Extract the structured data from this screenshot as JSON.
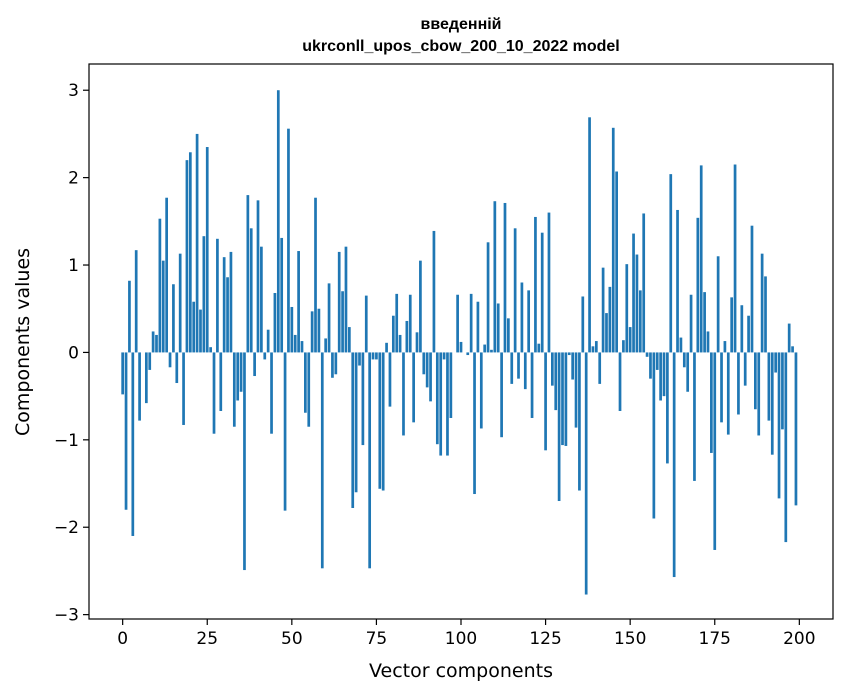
{
  "chart_data": {
    "type": "bar",
    "title_line1": "введеннiй",
    "title_line2": "ukrconll_upos_cbow_200_10_2022 model",
    "xlabel": "Vector components",
    "ylabel": "Components values",
    "xlim": [
      -9.95,
      209.95
    ],
    "ylim": [
      -3.05,
      3.3
    ],
    "xticks": [
      0,
      25,
      50,
      75,
      100,
      125,
      150,
      175,
      200
    ],
    "xtick_labels": [
      "0",
      "25",
      "50",
      "75",
      "100",
      "125",
      "150",
      "175",
      "200"
    ],
    "yticks": [
      3,
      2,
      1,
      0,
      -1,
      -2,
      -3
    ],
    "ytick_labels": [
      "3",
      "2",
      "1",
      "0",
      "−1",
      "−2",
      "−3"
    ],
    "bar_color": "#1f77b4",
    "grid": false,
    "legend": "none",
    "x": [
      0,
      1,
      2,
      3,
      4,
      5,
      6,
      7,
      8,
      9,
      10,
      11,
      12,
      13,
      14,
      15,
      16,
      17,
      18,
      19,
      20,
      21,
      22,
      23,
      24,
      25,
      26,
      27,
      28,
      29,
      30,
      31,
      32,
      33,
      34,
      35,
      36,
      37,
      38,
      39,
      40,
      41,
      42,
      43,
      44,
      45,
      46,
      47,
      48,
      49,
      50,
      51,
      52,
      53,
      54,
      55,
      56,
      57,
      58,
      59,
      60,
      61,
      62,
      63,
      64,
      65,
      66,
      67,
      68,
      69,
      70,
      71,
      72,
      73,
      74,
      75,
      76,
      77,
      78,
      79,
      80,
      81,
      82,
      83,
      84,
      85,
      86,
      87,
      88,
      89,
      90,
      91,
      92,
      93,
      94,
      95,
      96,
      97,
      98,
      99,
      100,
      101,
      102,
      103,
      104,
      105,
      106,
      107,
      108,
      109,
      110,
      111,
      112,
      113,
      114,
      115,
      116,
      117,
      118,
      119,
      120,
      121,
      122,
      123,
      124,
      125,
      126,
      127,
      128,
      129,
      130,
      131,
      132,
      133,
      134,
      135,
      136,
      137,
      138,
      139,
      140,
      141,
      142,
      143,
      144,
      145,
      146,
      147,
      148,
      149,
      150,
      151,
      152,
      153,
      154,
      155,
      156,
      157,
      158,
      159,
      160,
      161,
      162,
      163,
      164,
      165,
      166,
      167,
      168,
      169,
      170,
      171,
      172,
      173,
      174,
      175,
      176,
      177,
      178,
      179,
      180,
      181,
      182,
      183,
      184,
      185,
      186,
      187,
      188,
      189,
      190,
      191,
      192,
      193,
      194,
      195,
      196,
      197,
      198,
      199
    ],
    "values": [
      -0.48,
      -1.8,
      0.82,
      -2.1,
      1.17,
      -0.78,
      0.0,
      -0.58,
      -0.2,
      0.24,
      0.2,
      1.53,
      1.05,
      1.77,
      -0.17,
      0.78,
      -0.35,
      1.13,
      -0.83,
      2.2,
      2.29,
      0.58,
      2.5,
      0.49,
      1.33,
      2.35,
      0.06,
      -0.93,
      1.3,
      -0.67,
      1.09,
      0.86,
      1.15,
      -0.85,
      -0.55,
      -0.45,
      -2.49,
      1.8,
      1.42,
      -0.27,
      1.74,
      1.21,
      -0.08,
      0.26,
      -0.93,
      0.68,
      3.0,
      1.31,
      -1.81,
      2.56,
      0.52,
      0.2,
      1.16,
      0.13,
      -0.69,
      -0.85,
      0.47,
      1.77,
      0.5,
      -2.47,
      0.16,
      0.79,
      -0.29,
      -0.25,
      1.15,
      0.7,
      1.21,
      0.29,
      -1.78,
      -1.6,
      -0.15,
      -1.06,
      0.65,
      -2.47,
      -0.08,
      -0.08,
      -1.56,
      -1.58,
      0.11,
      -0.62,
      0.42,
      0.67,
      0.2,
      -0.95,
      0.36,
      0.66,
      -0.8,
      0.23,
      1.05,
      -0.25,
      -0.4,
      -0.56,
      1.39,
      -1.05,
      -1.18,
      -0.08,
      -1.18,
      -0.75,
      0.0,
      0.66,
      0.12,
      0.0,
      -0.03,
      0.67,
      -1.62,
      0.58,
      -0.87,
      0.09,
      1.26,
      0.03,
      1.73,
      0.56,
      -0.97,
      1.71,
      0.39,
      -0.36,
      1.42,
      -0.3,
      0.8,
      -0.42,
      0.71,
      -0.75,
      1.55,
      0.1,
      1.37,
      -1.12,
      1.6,
      -0.38,
      -0.66,
      -1.7,
      -1.06,
      -1.07,
      -0.03,
      -0.31,
      -0.86,
      -1.58,
      0.64,
      -2.77,
      2.69,
      0.07,
      0.13,
      -0.36,
      0.97,
      0.45,
      0.75,
      2.57,
      2.07,
      -0.67,
      0.14,
      1.01,
      0.29,
      1.36,
      1.12,
      0.71,
      1.59,
      -0.05,
      -0.3,
      -1.9,
      -0.2,
      -0.55,
      -0.5,
      -1.27,
      2.04,
      -2.57,
      1.63,
      0.17,
      -0.17,
      -0.45,
      0.66,
      -1.47,
      1.54,
      2.14,
      0.69,
      0.24,
      -1.15,
      -2.26,
      1.1,
      -0.8,
      0.13,
      -0.94,
      0.63,
      2.15,
      -0.71,
      0.54,
      -0.38,
      0.42,
      1.45,
      -0.65,
      -0.95,
      1.13,
      0.87,
      -0.78,
      -1.17,
      -0.23,
      -1.67,
      -0.88,
      -2.17,
      0.33,
      0.07,
      -1.75
    ]
  }
}
